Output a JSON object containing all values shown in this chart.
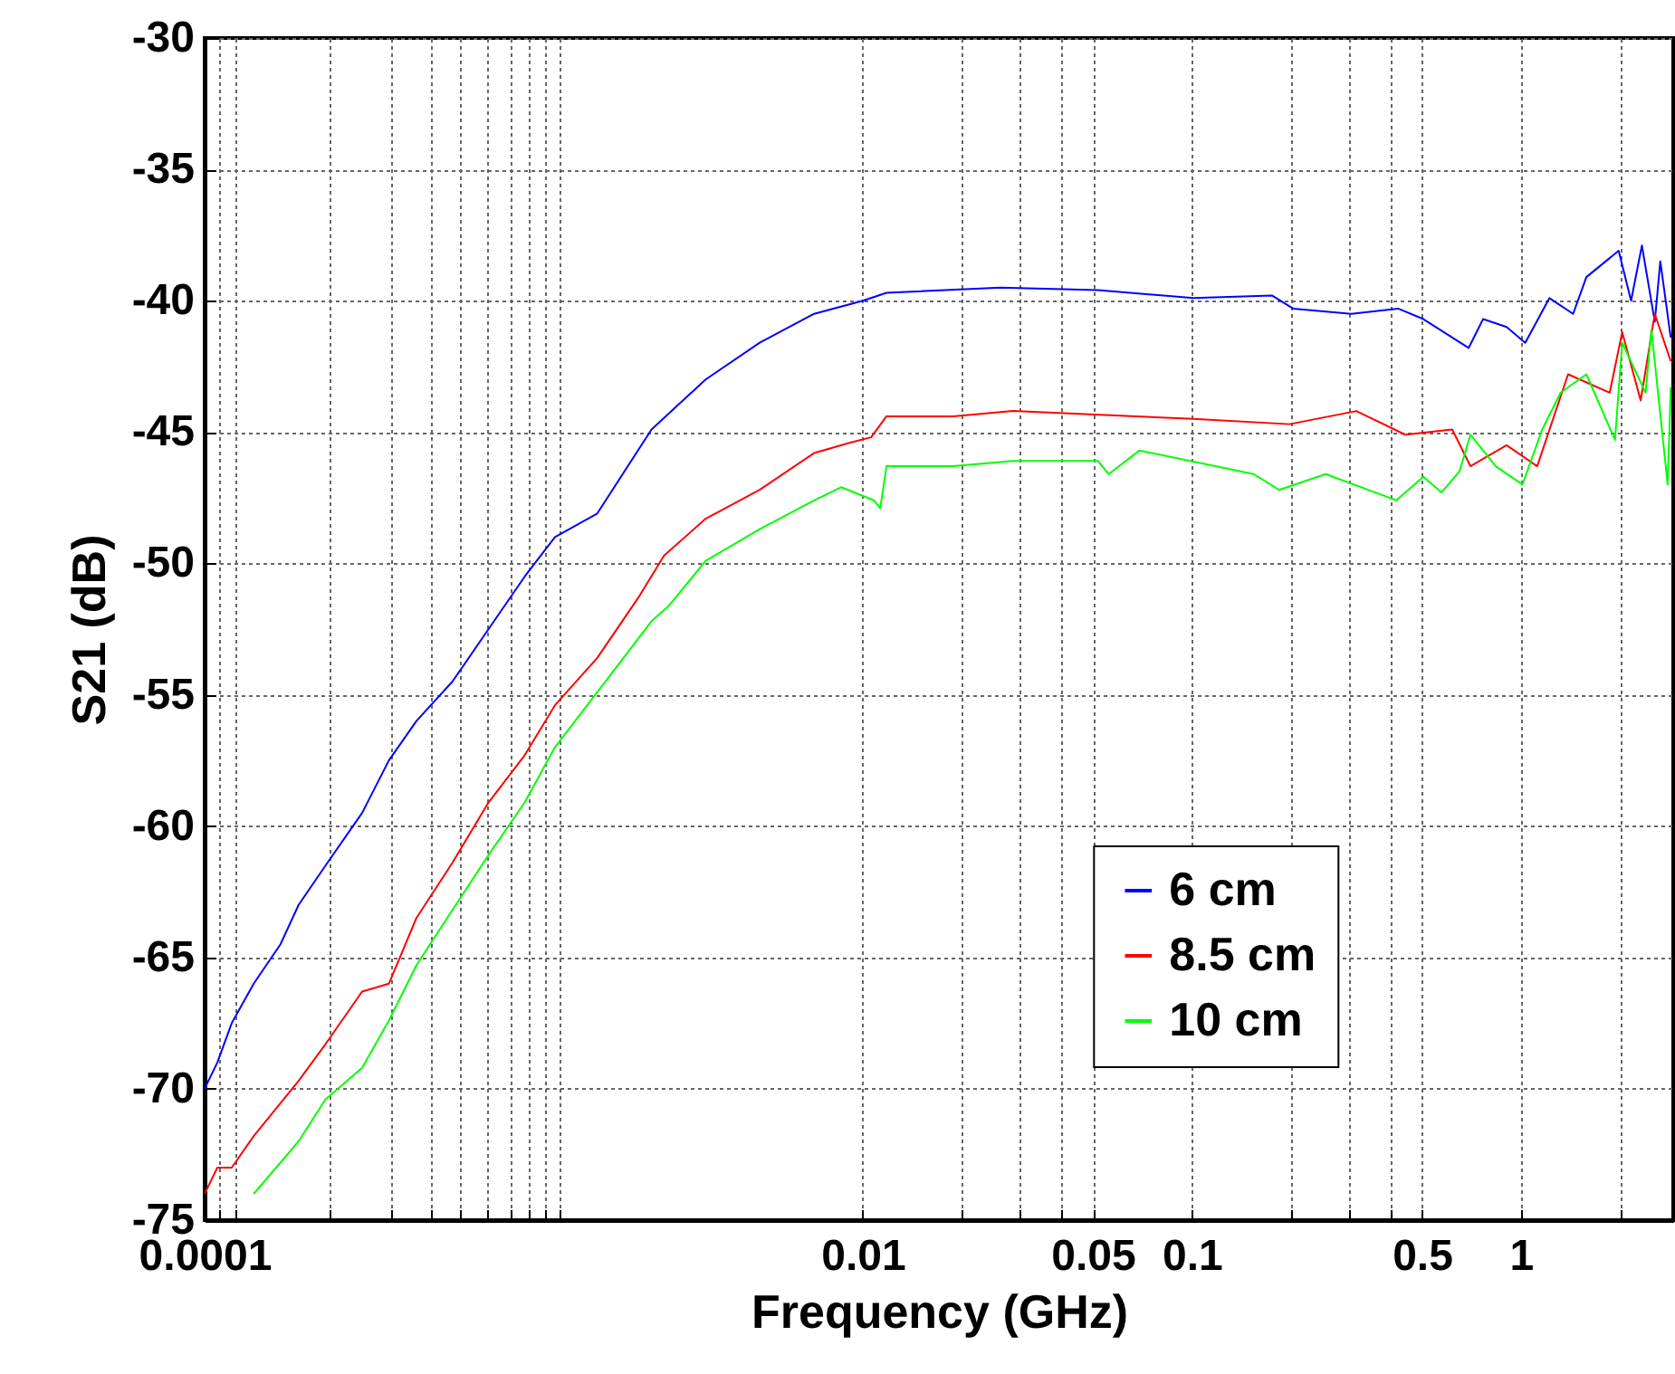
{
  "chart_data": {
    "type": "line",
    "xlabel": "Frequency (GHz)",
    "ylabel": "S21 (dB)",
    "log": "x",
    "grid": true,
    "legend": "bottom right",
    "xlim": [
      0.0001,
      2.9
    ],
    "ylim": [
      -75,
      -30
    ],
    "xticks": [
      0.0001,
      {
        "value": 0.000111,
        "label": null
      },
      {
        "value": 0.000124,
        "label": null
      },
      {
        "value": 0.00024,
        "label": null
      },
      {
        "value": 0.00037,
        "label": null
      },
      {
        "value": 0.00049,
        "label": null
      },
      {
        "value": 0.0006,
        "label": null
      },
      {
        "value": 0.00072,
        "label": null
      },
      {
        "value": 0.00085,
        "label": null
      },
      {
        "value": 0.00096,
        "label": null
      },
      {
        "value": 0.00108,
        "label": null
      },
      {
        "value": 0.0012,
        "label": null
      },
      0.01,
      {
        "value": 0.02,
        "label": null
      },
      {
        "value": 0.03,
        "label": null
      },
      {
        "value": 0.04,
        "label": null
      },
      0.05,
      0.1,
      {
        "value": 0.2,
        "label": null
      },
      {
        "value": 0.3,
        "label": null
      },
      {
        "value": 0.4,
        "label": null
      },
      0.5,
      1,
      {
        "value": 2,
        "label": null
      }
    ],
    "yticks": [
      -75,
      -70,
      -65,
      -60,
      -55,
      -50,
      -45,
      -40,
      -35,
      -30
    ],
    "series": [
      {
        "name": "6 cm",
        "color": "#0000ff",
        "x": [
          0.0001,
          0.0001093,
          0.0001209,
          0.000141,
          0.00017,
          0.000193,
          0.000233,
          0.000301,
          0.000363,
          0.00044,
          0.000566,
          0.000729,
          0.000939,
          0.00116,
          0.00156,
          0.00228,
          0.00333,
          0.00486,
          0.00711,
          0.01,
          0.0118,
          0.0262,
          0.0518,
          0.101,
          0.175,
          0.203,
          0.305,
          0.423,
          0.505,
          0.693,
          0.767,
          0.904,
          1.03,
          1.22,
          1.44,
          1.58,
          1.98,
          2.16,
          2.33,
          2.55,
          2.65,
          2.85
        ],
        "values": [
          -70,
          -69,
          -67.5,
          -66,
          -64.5,
          -63,
          -61.5,
          -59.5,
          -57.5,
          -56,
          -54.5,
          -52.5,
          -50.5,
          -49,
          -48.1,
          -44.9,
          -43,
          -41.6,
          -40.5,
          -40,
          -39.7,
          -39.5,
          -39.6,
          -39.9,
          -39.8,
          -40.3,
          -40.5,
          -40.3,
          -40.7,
          -41.8,
          -40.7,
          -41,
          -41.6,
          -39.9,
          -40.5,
          -39.1,
          -38.1,
          -40,
          -37.9,
          -40.8,
          -38.5,
          -41.4
        ]
      },
      {
        "name": "8.5 cm",
        "color": "#ff0000",
        "x": [
          0.0001,
          0.0001093,
          0.0001209,
          0.000141,
          0.000193,
          0.000233,
          0.000301,
          0.000363,
          0.00044,
          0.000566,
          0.000729,
          0.000939,
          0.00116,
          0.00156,
          0.00208,
          0.00249,
          0.00333,
          0.00486,
          0.00711,
          0.00916,
          0.0106,
          0.0118,
          0.0188,
          0.0286,
          0.101,
          0.198,
          0.316,
          0.445,
          0.618,
          0.702,
          0.904,
          1.12,
          1.39,
          1.86,
          2.03,
          2.31,
          2.55,
          2.85
        ],
        "values": [
          -74,
          -73,
          -73,
          -71.8,
          -69.7,
          -68.3,
          -66.3,
          -66,
          -63.5,
          -61.4,
          -59.1,
          -57.3,
          -55.4,
          -53.6,
          -51.3,
          -49.7,
          -48.3,
          -47.2,
          -45.8,
          -45.4,
          -45.2,
          -44.4,
          -44.4,
          -44.2,
          -44.5,
          -44.7,
          -44.2,
          -45.1,
          -44.9,
          -46.3,
          -45.5,
          -46.3,
          -42.8,
          -43.5,
          -41.2,
          -43.8,
          -40.5,
          -42.3
        ]
      },
      {
        "name": "10 cm",
        "color": "#00ff00",
        "x": [
          0.000141,
          0.000193,
          0.000233,
          0.000301,
          0.000363,
          0.00044,
          0.000566,
          0.000729,
          0.000939,
          0.00116,
          0.00156,
          0.00228,
          0.00258,
          0.00333,
          0.00486,
          0.00711,
          0.00859,
          0.0108,
          0.0113,
          0.0118,
          0.0188,
          0.0286,
          0.0518,
          0.0559,
          0.0693,
          0.154,
          0.184,
          0.255,
          0.418,
          0.505,
          0.573,
          0.65,
          0.702,
          0.838,
          1.01,
          1.16,
          1.32,
          1.58,
          1.93,
          2.03,
          2.39,
          2.49,
          2.79,
          2.85
        ],
        "values": [
          -74,
          -72,
          -70.4,
          -69.2,
          -67.4,
          -65.3,
          -63.2,
          -61.1,
          -59.1,
          -57,
          -54.9,
          -52.2,
          -51.6,
          -49.9,
          -48.7,
          -47.6,
          -47.1,
          -47.6,
          -47.9,
          -46.3,
          -46.3,
          -46.1,
          -46.1,
          -46.6,
          -45.7,
          -46.6,
          -47.2,
          -46.6,
          -47.6,
          -46.7,
          -47.3,
          -46.5,
          -45.1,
          -46.3,
          -47,
          -44.9,
          -43.5,
          -42.8,
          -45.3,
          -41.6,
          -43.5,
          -41.1,
          -47,
          -43.3
        ]
      }
    ]
  }
}
